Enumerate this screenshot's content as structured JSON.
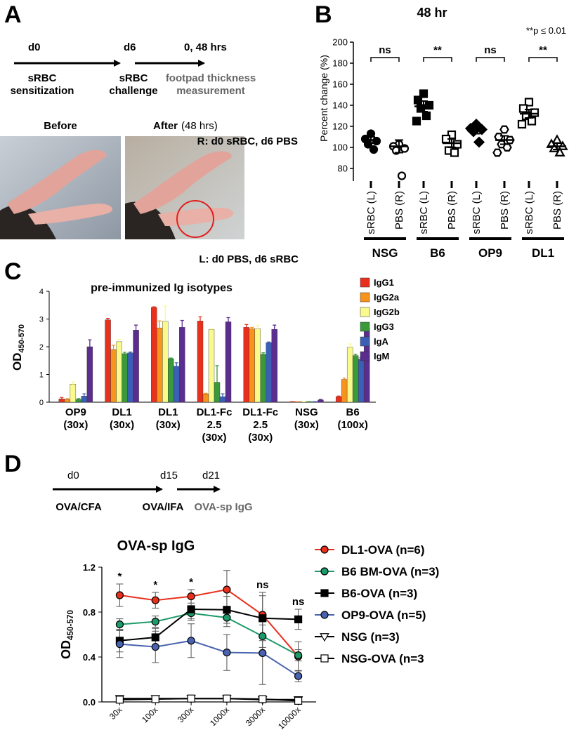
{
  "panel_labels": [
    "A",
    "B",
    "C",
    "D"
  ],
  "panel_a": {
    "timeline": [
      {
        "day": "d0",
        "event": [
          "sRBC",
          "sensitization"
        ]
      },
      {
        "day": "d6",
        "event": [
          "sRBC",
          "challenge"
        ]
      },
      {
        "day": "0, 48 hrs",
        "event": [
          "footpad thickness",
          "measurement"
        ]
      }
    ],
    "photo_before": "Before",
    "photo_after": {
      "label": "After",
      "note": "(48 hrs)"
    },
    "right_foot": "R: d0 sRBC, d6 PBS",
    "left_foot": "L: d0 PBS, d6 sRBC"
  },
  "panel_d": {
    "timeline": [
      {
        "day": "d0",
        "event": "OVA/CFA"
      },
      {
        "day": "d15",
        "event": "OVA/IFA"
      },
      {
        "day": "d21",
        "event": "OVA-sp IgG"
      }
    ]
  },
  "chart_data": [
    {
      "type": "dot",
      "title": "48 hr",
      "annotation": "**p ≤ 0.01",
      "ylabel": "Percent change (%)",
      "categories": [
        "sRBC (L)",
        "PBS (R)",
        "sRBC (L)",
        "PBS (R)",
        "sRBC (L)",
        "PBS (R)",
        "sRBC (L)",
        "PBS (R)"
      ],
      "groups": [
        "NSG",
        "B6",
        "OP9",
        "DL1"
      ],
      "significance": [
        "ns",
        "**",
        "ns",
        "**"
      ],
      "markers": [
        "circle",
        "circle-open",
        "square",
        "square-open",
        "diamond",
        "hexagon-open",
        "square-open",
        "triangle-open"
      ],
      "color": "#000000",
      "points": [
        [
          113,
          108,
          106,
          103,
          98
        ],
        [
          103,
          101,
          99,
          97,
          73
        ],
        [
          151,
          145,
          140,
          137,
          130,
          125
        ],
        [
          112,
          108,
          103,
          97,
          95
        ],
        [
          122,
          118,
          117,
          115,
          105
        ],
        [
          117,
          110,
          107,
          103,
          100,
          95
        ],
        [
          143,
          137,
          133,
          130,
          125,
          122
        ],
        [
          107,
          103,
          101,
          99,
          95
        ]
      ],
      "means": [
        107,
        101,
        139,
        104,
        116,
        107,
        132,
        101
      ],
      "errors": [
        3,
        6,
        5,
        4,
        3,
        4,
        4,
        3
      ],
      "ylim": [
        68,
        200
      ],
      "yticks": [
        80,
        100,
        120,
        140,
        160,
        180,
        200
      ]
    },
    {
      "type": "bar",
      "title": "pre-immunized Ig isotypes",
      "ylabel": {
        "text": "OD",
        "subscript": "450-570"
      },
      "categories": [
        [
          "OP9",
          "(30x)"
        ],
        [
          "DL1",
          "(30x)"
        ],
        [
          "DL1",
          "(30x)"
        ],
        [
          "DL1-Fc",
          "2.5",
          "(30x)"
        ],
        [
          "DL1-Fc",
          "2.5",
          "(30x)"
        ],
        [
          "NSG",
          "(30x)"
        ],
        [
          "B6",
          "(100x)"
        ]
      ],
      "series": [
        {
          "name": "IgG1",
          "color": "#e8301c",
          "values": [
            0.12,
            2.97,
            3.42,
            2.93,
            2.7,
            0.02,
            0.2
          ],
          "errors": [
            0.05,
            0.05,
            0.02,
            0.15,
            0.1,
            0,
            0.02
          ]
        },
        {
          "name": "IgG2a",
          "color": "#f7941d",
          "values": [
            0.1,
            1.9,
            2.68,
            0.3,
            2.65,
            0.02,
            0.82
          ],
          "errors": [
            0.03,
            0.15,
            0.25,
            0.02,
            0.05,
            0,
            0.05
          ]
        },
        {
          "name": "IgG2b",
          "color": "#fafa8c",
          "values": [
            0.65,
            2.18,
            2.92,
            2.62,
            2.65,
            0.02,
            1.98
          ],
          "errors": [
            0.08,
            0.08,
            0.55,
            0.02,
            0.12,
            0,
            0.12
          ]
        },
        {
          "name": "IgG3",
          "color": "#3a9a3a",
          "values": [
            0.1,
            1.75,
            1.57,
            0.72,
            1.73,
            0.02,
            1.68
          ],
          "errors": [
            0.03,
            0.05,
            0.02,
            0.6,
            0.05,
            0,
            0.05
          ]
        },
        {
          "name": "IgA",
          "color": "#3a5fb5",
          "values": [
            0.22,
            1.78,
            1.3,
            0.2,
            2.15,
            0.02,
            1.55
          ],
          "errors": [
            0.08,
            0.03,
            0.12,
            0.1,
            0.02,
            0,
            0.05
          ]
        },
        {
          "name": "IgM",
          "color": "#5b2d8e",
          "values": [
            2.0,
            2.6,
            2.7,
            2.9,
            2.63,
            0.08,
            2.68
          ],
          "errors": [
            0.25,
            0.18,
            0.25,
            0.15,
            0.15,
            0.02,
            0.12
          ]
        }
      ],
      "ylim": [
        0,
        4
      ],
      "yticks": [
        0,
        1,
        2,
        3,
        4
      ]
    },
    {
      "type": "line",
      "title": "OVA-sp IgG",
      "ylabel": {
        "text": "OD",
        "subscript": "450-570"
      },
      "categories": [
        "30x",
        "100x",
        "300x",
        "1000x",
        "3000x",
        "10000x"
      ],
      "significance": [
        "*",
        "*",
        "*",
        null,
        "ns",
        "ns"
      ],
      "series": [
        {
          "name": "DL1-OVA (n=6)",
          "color": "#e8301c",
          "marker": "circle",
          "values": [
            0.95,
            0.905,
            0.94,
            1.0,
            0.775,
            0.405
          ],
          "errors": [
            0.1,
            0.07,
            0.06,
            0.17,
            0.2,
            0.13
          ]
        },
        {
          "name": "B6 BM-OVA (n=3)",
          "color": "#1e9a6a",
          "marker": "circle",
          "values": [
            0.69,
            0.715,
            0.79,
            0.75,
            0.585,
            0.415
          ],
          "errors": [
            0.05,
            0.05,
            0.05,
            0.08,
            0.1,
            0.05
          ]
        },
        {
          "name": "B6-OVA (n=3)",
          "color": "#000000",
          "marker": "square",
          "values": [
            0.545,
            0.575,
            0.825,
            0.82,
            0.745,
            0.735
          ],
          "errors": [
            0.1,
            0.08,
            0.1,
            0.12,
            0.2,
            0.09
          ]
        },
        {
          "name": "OP9-OVA (n=5)",
          "color": "#4a63b0",
          "marker": "circle",
          "values": [
            0.515,
            0.49,
            0.545,
            0.44,
            0.435,
            0.23
          ],
          "errors": [
            0.12,
            0.14,
            0.15,
            0.16,
            0.28,
            0.05
          ]
        },
        {
          "name": "NSG (n=3)",
          "color": "#000000",
          "marker": "triangle-down-open",
          "values": [
            0.03,
            0.03,
            0.03,
            0.03,
            0.02,
            0.02
          ],
          "errors": [
            0.01,
            0.01,
            0.01,
            0.01,
            0.01,
            0.01
          ]
        },
        {
          "name": "NSG-OVA (n=3",
          "color": "#000000",
          "marker": "square-open",
          "values": [
            0.02,
            0.025,
            0.03,
            0.03,
            0.025,
            0.01
          ],
          "errors": [
            0.01,
            0.01,
            0.01,
            0.01,
            0.01,
            0.01
          ]
        }
      ],
      "ylim": [
        0,
        1.2
      ],
      "yticks": [
        {
          "value": 0,
          "label": "0.0"
        },
        0.4,
        0.8,
        1.2
      ]
    }
  ]
}
